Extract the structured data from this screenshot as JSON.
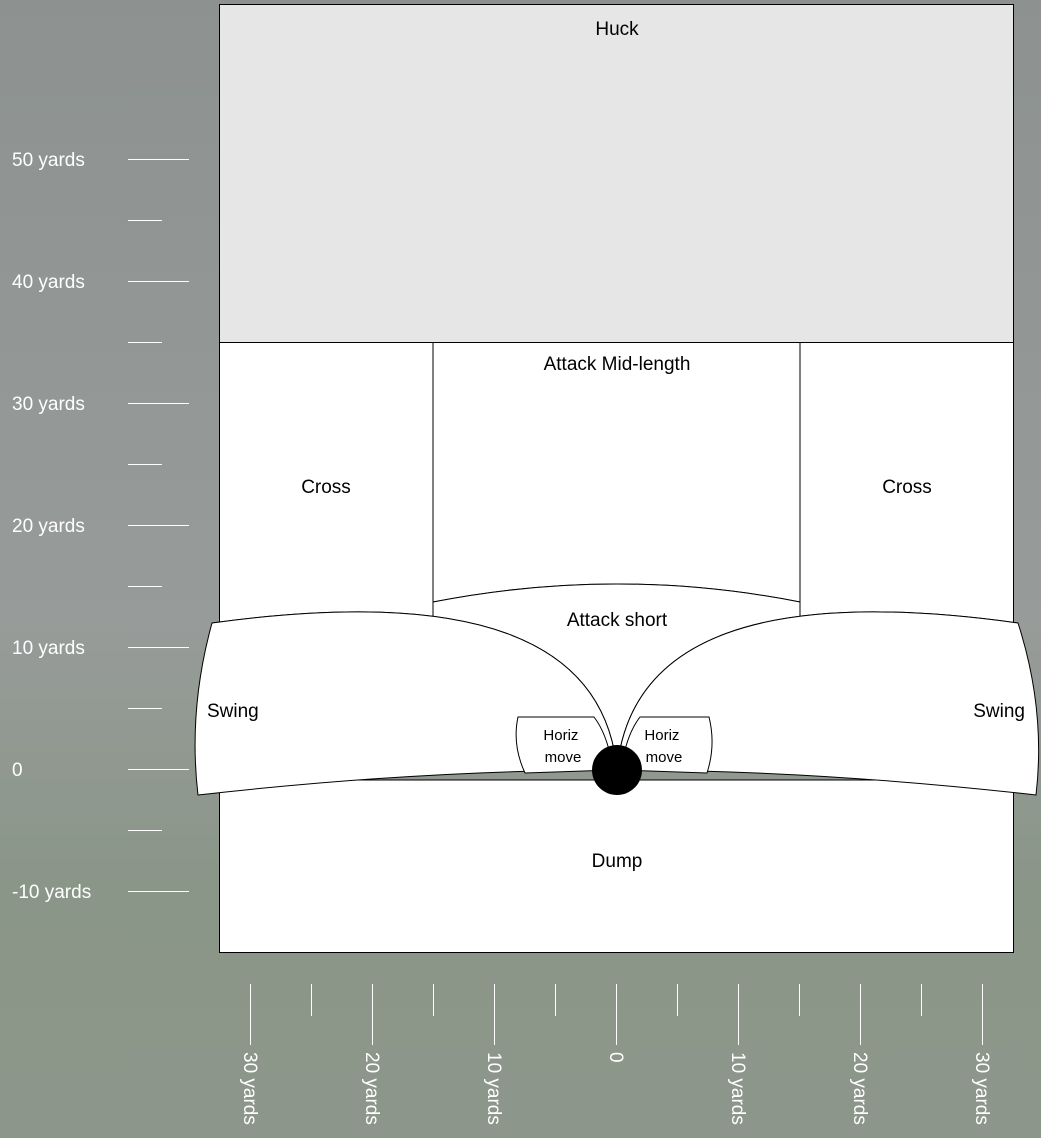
{
  "zones": {
    "huck": "Huck",
    "attack_mid": "Attack Mid-length",
    "cross_left": "Cross",
    "cross_right": "Cross",
    "attack_short": "Attack short",
    "swing_left": "Swing",
    "swing_right": "Swing",
    "horiz_left": [
      "Horiz",
      "move"
    ],
    "horiz_right": [
      "Horiz",
      "move"
    ],
    "dump": "Dump"
  },
  "y_axis": {
    "labels": [
      "50 yards",
      "40 yards",
      "30 yards",
      "20 yards",
      "10 yards",
      "0",
      "-10 yards"
    ]
  },
  "x_axis": {
    "labels": [
      "30 yards",
      "20 yards",
      "10 yards",
      "0",
      "10 yards",
      "20 yards",
      "30 yards"
    ]
  },
  "colors": {
    "huck_fill": "#e6e6e6",
    "zone_fill": "#ffffff",
    "stroke": "#000000",
    "axis": "#ffffff"
  }
}
